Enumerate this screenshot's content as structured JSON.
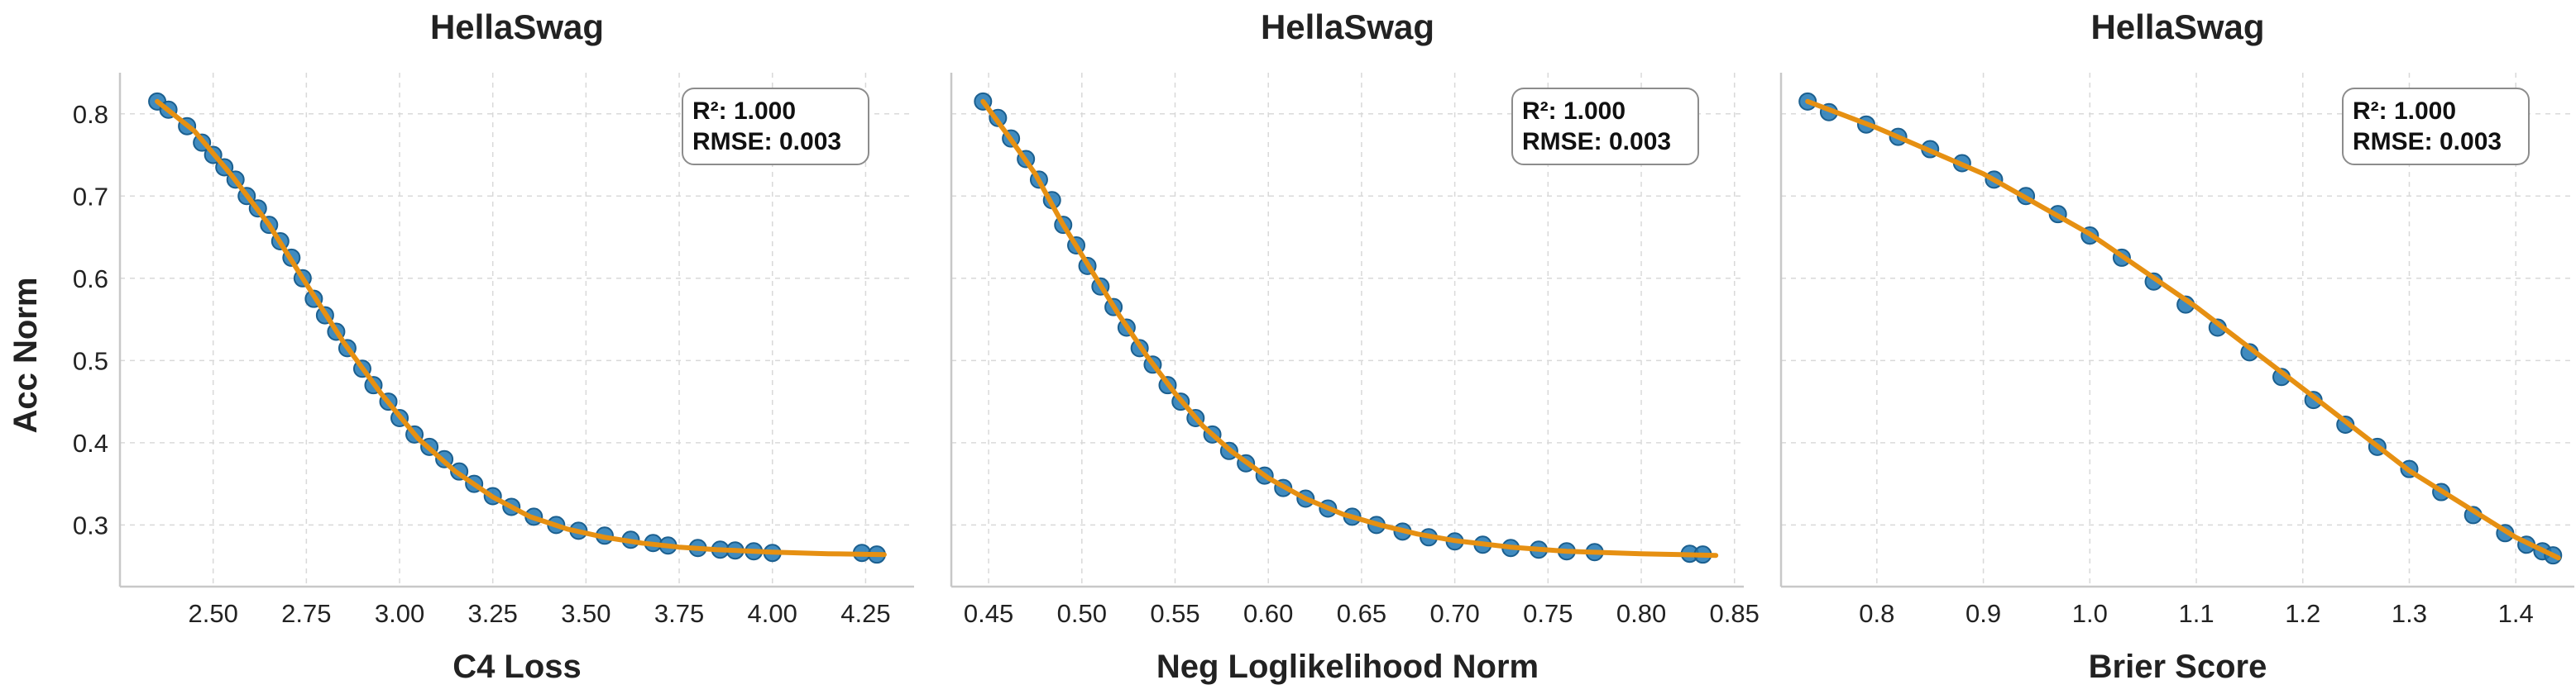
{
  "shared_ylabel": "Acc Norm",
  "colors": {
    "points": "#1f77b4",
    "point_edge": "#1b5f8f",
    "fit": "#e69012",
    "grid": "#d9d9d9",
    "axis": "#c8c8c8",
    "text": "#222222"
  },
  "chart_data": [
    {
      "type": "scatter",
      "title": "HellaSwag",
      "xlabel": "C4 Loss",
      "ylabel": "Acc Norm",
      "xlim": [
        2.25,
        4.38
      ],
      "ylim": [
        0.225,
        0.85
      ],
      "xticks": [
        "2.50",
        "2.75",
        "3.00",
        "3.25",
        "3.50",
        "3.75",
        "4.00",
        "4.25"
      ],
      "yticks": [
        "0.3",
        "0.4",
        "0.5",
        "0.6",
        "0.7",
        "0.8"
      ],
      "grid": true,
      "stats": [
        "R²: 1.000",
        "RMSE: 0.003"
      ],
      "stats_placement": "top-right",
      "points": [
        [
          2.35,
          0.815
        ],
        [
          2.38,
          0.805
        ],
        [
          2.43,
          0.785
        ],
        [
          2.47,
          0.765
        ],
        [
          2.5,
          0.75
        ],
        [
          2.53,
          0.735
        ],
        [
          2.56,
          0.72
        ],
        [
          2.59,
          0.7
        ],
        [
          2.62,
          0.685
        ],
        [
          2.65,
          0.665
        ],
        [
          2.68,
          0.645
        ],
        [
          2.71,
          0.625
        ],
        [
          2.74,
          0.6
        ],
        [
          2.77,
          0.575
        ],
        [
          2.8,
          0.555
        ],
        [
          2.83,
          0.535
        ],
        [
          2.86,
          0.515
        ],
        [
          2.9,
          0.49
        ],
        [
          2.93,
          0.47
        ],
        [
          2.97,
          0.45
        ],
        [
          3.0,
          0.43
        ],
        [
          3.04,
          0.41
        ],
        [
          3.08,
          0.395
        ],
        [
          3.12,
          0.38
        ],
        [
          3.16,
          0.365
        ],
        [
          3.2,
          0.35
        ],
        [
          3.25,
          0.335
        ],
        [
          3.3,
          0.322
        ],
        [
          3.36,
          0.31
        ],
        [
          3.42,
          0.3
        ],
        [
          3.48,
          0.293
        ],
        [
          3.55,
          0.287
        ],
        [
          3.62,
          0.282
        ],
        [
          3.68,
          0.278
        ],
        [
          3.72,
          0.275
        ],
        [
          3.8,
          0.272
        ],
        [
          3.86,
          0.27
        ],
        [
          3.9,
          0.269
        ],
        [
          3.95,
          0.268
        ],
        [
          4.0,
          0.266
        ],
        [
          4.24,
          0.266
        ],
        [
          4.28,
          0.264
        ]
      ],
      "fit_line": [
        [
          2.35,
          0.815
        ],
        [
          2.45,
          0.779
        ],
        [
          2.55,
          0.725
        ],
        [
          2.65,
          0.665
        ],
        [
          2.75,
          0.593
        ],
        [
          2.85,
          0.522
        ],
        [
          2.95,
          0.46
        ],
        [
          3.05,
          0.405
        ],
        [
          3.15,
          0.365
        ],
        [
          3.25,
          0.334
        ],
        [
          3.35,
          0.31
        ],
        [
          3.45,
          0.295
        ],
        [
          3.55,
          0.285
        ],
        [
          3.65,
          0.278
        ],
        [
          3.75,
          0.273
        ],
        [
          3.85,
          0.27
        ],
        [
          4.0,
          0.267
        ],
        [
          4.15,
          0.265
        ],
        [
          4.3,
          0.264
        ]
      ]
    },
    {
      "type": "scatter",
      "title": "HellaSwag",
      "xlabel": "Neg Loglikelihood Norm",
      "ylabel": "",
      "xlim": [
        0.43,
        0.855
      ],
      "ylim": [
        0.225,
        0.85
      ],
      "xticks": [
        "0.45",
        "0.50",
        "0.55",
        "0.60",
        "0.65",
        "0.70",
        "0.75",
        "0.80",
        "0.85"
      ],
      "yticks": [],
      "grid": true,
      "stats": [
        "R²: 1.000",
        "RMSE: 0.003"
      ],
      "stats_placement": "top-right",
      "points": [
        [
          0.447,
          0.815
        ],
        [
          0.455,
          0.795
        ],
        [
          0.462,
          0.77
        ],
        [
          0.47,
          0.745
        ],
        [
          0.477,
          0.72
        ],
        [
          0.484,
          0.695
        ],
        [
          0.49,
          0.665
        ],
        [
          0.497,
          0.64
        ],
        [
          0.503,
          0.615
        ],
        [
          0.51,
          0.59
        ],
        [
          0.517,
          0.565
        ],
        [
          0.524,
          0.54
        ],
        [
          0.531,
          0.515
        ],
        [
          0.538,
          0.495
        ],
        [
          0.546,
          0.47
        ],
        [
          0.553,
          0.45
        ],
        [
          0.561,
          0.43
        ],
        [
          0.57,
          0.41
        ],
        [
          0.579,
          0.39
        ],
        [
          0.588,
          0.375
        ],
        [
          0.598,
          0.36
        ],
        [
          0.608,
          0.345
        ],
        [
          0.62,
          0.332
        ],
        [
          0.632,
          0.32
        ],
        [
          0.645,
          0.31
        ],
        [
          0.658,
          0.3
        ],
        [
          0.672,
          0.292
        ],
        [
          0.686,
          0.285
        ],
        [
          0.7,
          0.28
        ],
        [
          0.715,
          0.276
        ],
        [
          0.73,
          0.272
        ],
        [
          0.745,
          0.27
        ],
        [
          0.76,
          0.268
        ],
        [
          0.775,
          0.267
        ],
        [
          0.826,
          0.265
        ],
        [
          0.833,
          0.264
        ]
      ],
      "fit_line": [
        [
          0.447,
          0.815
        ],
        [
          0.46,
          0.775
        ],
        [
          0.475,
          0.727
        ],
        [
          0.49,
          0.665
        ],
        [
          0.505,
          0.61
        ],
        [
          0.52,
          0.555
        ],
        [
          0.535,
          0.505
        ],
        [
          0.55,
          0.46
        ],
        [
          0.565,
          0.42
        ],
        [
          0.58,
          0.39
        ],
        [
          0.6,
          0.357
        ],
        [
          0.62,
          0.332
        ],
        [
          0.64,
          0.313
        ],
        [
          0.66,
          0.3
        ],
        [
          0.68,
          0.289
        ],
        [
          0.7,
          0.281
        ],
        [
          0.73,
          0.273
        ],
        [
          0.76,
          0.268
        ],
        [
          0.8,
          0.265
        ],
        [
          0.84,
          0.263
        ]
      ]
    },
    {
      "type": "scatter",
      "title": "HellaSwag",
      "xlabel": "Brier Score",
      "ylabel": "",
      "xlim": [
        0.71,
        1.455
      ],
      "ylim": [
        0.225,
        0.85
      ],
      "xticks": [
        "0.8",
        "0.9",
        "1.0",
        "1.1",
        "1.2",
        "1.3",
        "1.4"
      ],
      "yticks": [],
      "grid": true,
      "stats": [
        "R²: 1.000",
        "RMSE: 0.003"
      ],
      "stats_placement": "top-right",
      "points": [
        [
          0.735,
          0.815
        ],
        [
          0.755,
          0.802
        ],
        [
          0.79,
          0.787
        ],
        [
          0.82,
          0.772
        ],
        [
          0.85,
          0.757
        ],
        [
          0.88,
          0.74
        ],
        [
          0.91,
          0.72
        ],
        [
          0.94,
          0.7
        ],
        [
          0.97,
          0.678
        ],
        [
          1.0,
          0.652
        ],
        [
          1.03,
          0.625
        ],
        [
          1.06,
          0.596
        ],
        [
          1.09,
          0.568
        ],
        [
          1.12,
          0.54
        ],
        [
          1.15,
          0.51
        ],
        [
          1.18,
          0.48
        ],
        [
          1.21,
          0.452
        ],
        [
          1.24,
          0.422
        ],
        [
          1.27,
          0.395
        ],
        [
          1.3,
          0.368
        ],
        [
          1.33,
          0.34
        ],
        [
          1.36,
          0.312
        ],
        [
          1.39,
          0.29
        ],
        [
          1.41,
          0.276
        ],
        [
          1.425,
          0.268
        ],
        [
          1.435,
          0.263
        ]
      ],
      "fit_line": [
        [
          0.735,
          0.815
        ],
        [
          0.8,
          0.783
        ],
        [
          0.9,
          0.727
        ],
        [
          1.0,
          0.654
        ],
        [
          1.1,
          0.565
        ],
        [
          1.2,
          0.466
        ],
        [
          1.3,
          0.366
        ],
        [
          1.4,
          0.285
        ],
        [
          1.44,
          0.26
        ]
      ]
    }
  ]
}
